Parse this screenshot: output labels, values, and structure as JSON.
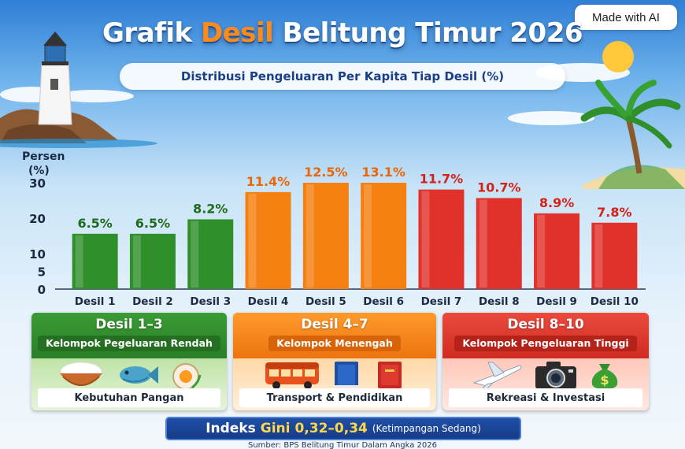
{
  "title": {
    "part1": "Grafik",
    "accent": "Desil",
    "part2": "Belitung Timur 2026"
  },
  "subtitle": "Distribusi Pengeluaran Per Kapita Tiap Desil (%)",
  "badge": "Made with AI",
  "chart_data": {
    "type": "bar",
    "ylabel": "Persen (%)",
    "ylim": [
      0,
      30
    ],
    "yticks": [
      0,
      5,
      10,
      20,
      30
    ],
    "grid": false,
    "categories": [
      "Desil 1",
      "Desil 2",
      "Desil 3",
      "Desil 4",
      "Desil 5",
      "Desil 6",
      "Desil 7",
      "Desil 8",
      "Desil 9",
      "Desil 10"
    ],
    "values": [
      6.5,
      6.5,
      8.2,
      11.4,
      12.5,
      13.1,
      11.7,
      10.7,
      8.9,
      7.8
    ],
    "labels": [
      "6.5%",
      "6.5%",
      "8.2%",
      "11.4%",
      "12.5%",
      "13.1%",
      "11.7%",
      "10.7%",
      "8.9%",
      "7.8%"
    ],
    "colors": [
      "#2f8f2a",
      "#2f8f2a",
      "#2f8f2a",
      "#f57f10",
      "#f57f10",
      "#f57f10",
      "#e0322a",
      "#e0322a",
      "#e0322a",
      "#e0322a"
    ],
    "label_colors": [
      "#1f6b1b",
      "#1f6b1b",
      "#1f6b1b",
      "#e8650a",
      "#e8650a",
      "#e8650a",
      "#d4221a",
      "#d4221a",
      "#d4221a",
      "#d4221a"
    ]
  },
  "groups": [
    {
      "title": "Desil 1–3",
      "subtitle": "Kelompok Pegeluaran Rendah",
      "footer": "Kebutuhan Pangan",
      "icons": [
        "rice-bowl-icon",
        "fish-icon",
        "egg-icon"
      ]
    },
    {
      "title": "Desil 4–7",
      "subtitle": "Kelompok Menengah",
      "footer": "Transport & Pendidikan",
      "icons": [
        "bus-icon",
        "book-icon",
        "book-icon"
      ]
    },
    {
      "title": "Desil 8–10",
      "subtitle": "Kelompok Pengeluaran Tinggi",
      "footer": "Rekreasi & Investasi",
      "icons": [
        "airplane-icon",
        "camera-icon",
        "money-bag-icon"
      ]
    }
  ],
  "gini": {
    "label": "Indeks",
    "label2": "Gini",
    "value": "0,32–0,34",
    "note": "(Ketimpangan Sedang)"
  },
  "source": "Sumber: BPS Belitung Timur Dalam Angka 2026"
}
